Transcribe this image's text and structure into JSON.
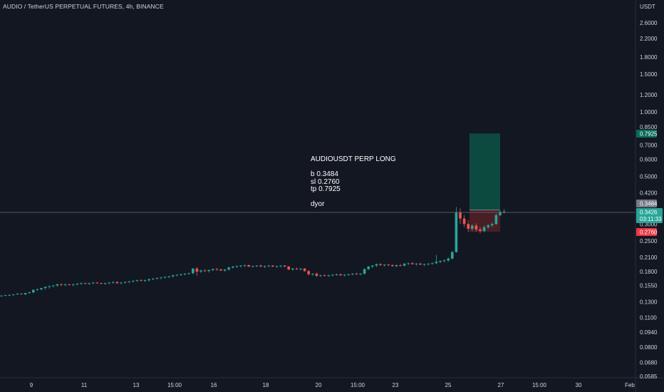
{
  "header": {
    "title": "AUDIO / TetherUS PERPETUAL FUTURES, 4h, BINANCE"
  },
  "price_axis": {
    "currency": "USDT",
    "labels": [
      "2.6000",
      "2.2000",
      "1.8000",
      "1.5000",
      "1.2000",
      "1.0000",
      "0.8500",
      "0.7000",
      "0.6000",
      "0.5000",
      "0.4200",
      "0.3000",
      "0.2500",
      "0.2100",
      "0.1800",
      "0.1550",
      "0.1300",
      "0.1100",
      "0.0940",
      "0.0800",
      "0.0680",
      "0.0585"
    ]
  },
  "time_axis": {
    "labels": [
      "9",
      "11",
      "13",
      "15:00",
      "16",
      "18",
      "20",
      "15:00",
      "23",
      "25",
      "27",
      "15:00",
      "30",
      "Feb"
    ]
  },
  "badges": {
    "target": "0.7925",
    "entry": "0.3484",
    "current": "0.3426",
    "countdown": "03:11:33",
    "stop": "0.2760"
  },
  "annotation": {
    "line1": "AUDIOUSDT PERP LONG",
    "line2": "b 0.3484",
    "line3": "sl 0.2760",
    "line4": "tp 0.7925",
    "line5": "dyor"
  },
  "colors": {
    "background": "#131722",
    "up": "#26a69a",
    "down": "#ef5350",
    "text": "#d1d4dc",
    "profit_zone": "#0c4a40",
    "loss_zone": "#4a1e25",
    "target_badge": "#0b6b58",
    "entry_badge": "#787b86",
    "current_badge": "#26a69a",
    "stop_badge": "#f23645"
  },
  "chart_data": {
    "type": "candlestick",
    "timeframe": "4h",
    "scale": "log",
    "ylim": [
      0.057,
      3.0
    ],
    "series": [
      {
        "name": "AUDIO / TetherUS PERPETUAL FUTURES",
        "ohlc": [
          [
            0.139,
            0.14,
            0.138,
            0.139
          ],
          [
            0.139,
            0.14,
            0.138,
            0.14
          ],
          [
            0.14,
            0.141,
            0.139,
            0.14
          ],
          [
            0.14,
            0.141,
            0.139,
            0.141
          ],
          [
            0.141,
            0.143,
            0.14,
            0.142
          ],
          [
            0.142,
            0.143,
            0.141,
            0.141
          ],
          [
            0.141,
            0.143,
            0.14,
            0.143
          ],
          [
            0.143,
            0.145,
            0.142,
            0.144
          ],
          [
            0.144,
            0.149,
            0.143,
            0.148
          ],
          [
            0.148,
            0.15,
            0.146,
            0.149
          ],
          [
            0.149,
            0.15,
            0.147,
            0.151
          ],
          [
            0.151,
            0.152,
            0.148,
            0.153
          ],
          [
            0.153,
            0.155,
            0.15,
            0.154
          ],
          [
            0.154,
            0.156,
            0.152,
            0.155
          ],
          [
            0.155,
            0.158,
            0.153,
            0.157
          ],
          [
            0.157,
            0.159,
            0.154,
            0.156
          ],
          [
            0.156,
            0.158,
            0.154,
            0.157
          ],
          [
            0.157,
            0.158,
            0.155,
            0.156
          ],
          [
            0.156,
            0.158,
            0.154,
            0.157
          ],
          [
            0.157,
            0.159,
            0.155,
            0.158
          ],
          [
            0.158,
            0.16,
            0.156,
            0.159
          ],
          [
            0.159,
            0.16,
            0.157,
            0.158
          ],
          [
            0.158,
            0.16,
            0.156,
            0.159
          ],
          [
            0.159,
            0.161,
            0.157,
            0.16
          ],
          [
            0.16,
            0.161,
            0.158,
            0.159
          ],
          [
            0.159,
            0.16,
            0.157,
            0.158
          ],
          [
            0.158,
            0.16,
            0.156,
            0.159
          ],
          [
            0.159,
            0.161,
            0.157,
            0.16
          ],
          [
            0.16,
            0.162,
            0.158,
            0.161
          ],
          [
            0.161,
            0.162,
            0.158,
            0.159
          ],
          [
            0.159,
            0.161,
            0.157,
            0.16
          ],
          [
            0.16,
            0.162,
            0.158,
            0.161
          ],
          [
            0.161,
            0.163,
            0.159,
            0.162
          ],
          [
            0.162,
            0.164,
            0.16,
            0.163
          ],
          [
            0.163,
            0.165,
            0.161,
            0.164
          ],
          [
            0.164,
            0.166,
            0.162,
            0.163
          ],
          [
            0.163,
            0.165,
            0.161,
            0.164
          ],
          [
            0.164,
            0.167,
            0.162,
            0.166
          ],
          [
            0.166,
            0.168,
            0.164,
            0.167
          ],
          [
            0.167,
            0.169,
            0.165,
            0.168
          ],
          [
            0.168,
            0.17,
            0.166,
            0.169
          ],
          [
            0.169,
            0.171,
            0.167,
            0.17
          ],
          [
            0.17,
            0.172,
            0.168,
            0.171
          ],
          [
            0.171,
            0.174,
            0.169,
            0.173
          ],
          [
            0.173,
            0.175,
            0.171,
            0.174
          ],
          [
            0.174,
            0.176,
            0.172,
            0.175
          ],
          [
            0.175,
            0.177,
            0.173,
            0.176
          ],
          [
            0.176,
            0.178,
            0.174,
            0.177
          ],
          [
            0.177,
            0.187,
            0.175,
            0.186
          ],
          [
            0.186,
            0.189,
            0.172,
            0.18
          ],
          [
            0.18,
            0.184,
            0.177,
            0.182
          ],
          [
            0.182,
            0.185,
            0.179,
            0.181
          ],
          [
            0.181,
            0.184,
            0.178,
            0.183
          ],
          [
            0.183,
            0.186,
            0.181,
            0.185
          ],
          [
            0.185,
            0.187,
            0.182,
            0.184
          ],
          [
            0.184,
            0.186,
            0.181,
            0.182
          ],
          [
            0.182,
            0.185,
            0.18,
            0.184
          ],
          [
            0.184,
            0.19,
            0.182,
            0.188
          ],
          [
            0.188,
            0.191,
            0.186,
            0.19
          ],
          [
            0.19,
            0.192,
            0.187,
            0.191
          ],
          [
            0.191,
            0.193,
            0.188,
            0.192
          ],
          [
            0.192,
            0.194,
            0.189,
            0.193
          ],
          [
            0.193,
            0.194,
            0.189,
            0.19
          ],
          [
            0.19,
            0.192,
            0.188,
            0.191
          ],
          [
            0.191,
            0.193,
            0.189,
            0.192
          ],
          [
            0.192,
            0.194,
            0.189,
            0.19
          ],
          [
            0.19,
            0.192,
            0.187,
            0.191
          ],
          [
            0.191,
            0.193,
            0.189,
            0.192
          ],
          [
            0.192,
            0.193,
            0.189,
            0.19
          ],
          [
            0.19,
            0.192,
            0.187,
            0.191
          ],
          [
            0.191,
            0.193,
            0.188,
            0.192
          ],
          [
            0.192,
            0.193,
            0.189,
            0.19
          ],
          [
            0.19,
            0.191,
            0.183,
            0.184
          ],
          [
            0.184,
            0.187,
            0.182,
            0.186
          ],
          [
            0.186,
            0.188,
            0.183,
            0.185
          ],
          [
            0.185,
            0.187,
            0.182,
            0.186
          ],
          [
            0.186,
            0.187,
            0.18,
            0.181
          ],
          [
            0.181,
            0.183,
            0.173,
            0.175
          ],
          [
            0.175,
            0.177,
            0.172,
            0.176
          ],
          [
            0.176,
            0.178,
            0.17,
            0.172
          ],
          [
            0.172,
            0.174,
            0.17,
            0.173
          ],
          [
            0.173,
            0.175,
            0.171,
            0.172
          ],
          [
            0.172,
            0.174,
            0.17,
            0.173
          ],
          [
            0.173,
            0.175,
            0.171,
            0.174
          ],
          [
            0.174,
            0.176,
            0.172,
            0.175
          ],
          [
            0.175,
            0.176,
            0.172,
            0.173
          ],
          [
            0.173,
            0.175,
            0.171,
            0.174
          ],
          [
            0.174,
            0.176,
            0.172,
            0.175
          ],
          [
            0.175,
            0.177,
            0.173,
            0.176
          ],
          [
            0.176,
            0.178,
            0.174,
            0.175
          ],
          [
            0.175,
            0.177,
            0.173,
            0.176
          ],
          [
            0.176,
            0.186,
            0.174,
            0.185
          ],
          [
            0.185,
            0.191,
            0.183,
            0.19
          ],
          [
            0.19,
            0.193,
            0.187,
            0.192
          ],
          [
            0.192,
            0.196,
            0.189,
            0.195
          ],
          [
            0.195,
            0.197,
            0.191,
            0.193
          ],
          [
            0.193,
            0.195,
            0.19,
            0.194
          ],
          [
            0.194,
            0.196,
            0.191,
            0.193
          ],
          [
            0.193,
            0.195,
            0.19,
            0.191
          ],
          [
            0.191,
            0.194,
            0.189,
            0.193
          ],
          [
            0.193,
            0.195,
            0.19,
            0.192
          ],
          [
            0.192,
            0.197,
            0.19,
            0.196
          ],
          [
            0.196,
            0.198,
            0.193,
            0.197
          ],
          [
            0.197,
            0.199,
            0.194,
            0.195
          ],
          [
            0.195,
            0.197,
            0.192,
            0.196
          ],
          [
            0.196,
            0.198,
            0.193,
            0.194
          ],
          [
            0.194,
            0.196,
            0.191,
            0.195
          ],
          [
            0.195,
            0.197,
            0.192,
            0.196
          ],
          [
            0.196,
            0.199,
            0.194,
            0.197
          ],
          [
            0.197,
            0.215,
            0.195,
            0.2
          ],
          [
            0.2,
            0.203,
            0.197,
            0.202
          ],
          [
            0.202,
            0.205,
            0.199,
            0.203
          ],
          [
            0.203,
            0.209,
            0.2,
            0.207
          ],
          [
            0.207,
            0.225,
            0.205,
            0.222
          ],
          [
            0.222,
            0.36,
            0.22,
            0.34
          ],
          [
            0.34,
            0.355,
            0.3,
            0.318
          ],
          [
            0.318,
            0.33,
            0.29,
            0.3
          ],
          [
            0.3,
            0.312,
            0.275,
            0.285
          ],
          [
            0.285,
            0.3,
            0.278,
            0.295
          ],
          [
            0.295,
            0.302,
            0.276,
            0.283
          ],
          [
            0.283,
            0.29,
            0.272,
            0.278
          ],
          [
            0.278,
            0.295,
            0.275,
            0.29
          ],
          [
            0.29,
            0.3,
            0.285,
            0.296
          ],
          [
            0.296,
            0.305,
            0.29,
            0.3
          ],
          [
            0.3,
            0.335,
            0.298,
            0.33
          ],
          [
            0.33,
            0.346,
            0.326,
            0.342
          ],
          [
            0.342,
            0.352,
            0.335,
            0.343
          ]
        ]
      }
    ],
    "levels": {
      "entry": 0.3484,
      "stop": 0.276,
      "target": 0.7925,
      "current": 0.3426
    },
    "position": {
      "side": "long",
      "entry": 0.3484,
      "stop_loss": 0.276,
      "take_profit": 0.7925
    },
    "grid": false
  }
}
